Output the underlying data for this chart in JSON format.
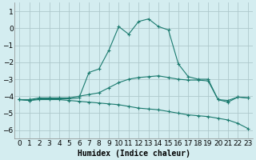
{
  "title": "",
  "xlabel": "Humidex (Indice chaleur)",
  "bg_color": "#d4edf0",
  "grid_color": "#aec8cc",
  "line_color": "#1a7a6e",
  "marker": "+",
  "series": [
    {
      "x": [
        0,
        1,
        2,
        3,
        4,
        5,
        6,
        7,
        8,
        9,
        10,
        11,
        12,
        13,
        14,
        15,
        16,
        17,
        18,
        19,
        20,
        21,
        22,
        23
      ],
      "y": [
        -4.2,
        -4.2,
        -4.1,
        -4.1,
        -4.1,
        -4.1,
        -4.0,
        -3.9,
        -3.8,
        -3.5,
        -3.2,
        -3.0,
        -2.9,
        -2.85,
        -2.8,
        -2.9,
        -3.0,
        -3.05,
        -3.05,
        -3.1,
        -4.2,
        -4.35,
        -4.05,
        -4.1
      ]
    },
    {
      "x": [
        0,
        1,
        2,
        3,
        4,
        5,
        6,
        7,
        8,
        9,
        10,
        11,
        12,
        13,
        14,
        15,
        16,
        17,
        18,
        19,
        20,
        21,
        22,
        23
      ],
      "y": [
        -4.2,
        -4.25,
        -4.2,
        -4.2,
        -4.2,
        -4.25,
        -4.3,
        -4.35,
        -4.4,
        -4.45,
        -4.5,
        -4.6,
        -4.7,
        -4.75,
        -4.8,
        -4.9,
        -5.0,
        -5.1,
        -5.15,
        -5.2,
        -5.3,
        -5.4,
        -5.6,
        -5.9
      ]
    },
    {
      "x": [
        0,
        1,
        2,
        3,
        4,
        5,
        6,
        7,
        8,
        9,
        10,
        11,
        12,
        13,
        14,
        15,
        16,
        17,
        18,
        19,
        20,
        21,
        22,
        23
      ],
      "y": [
        -4.2,
        -4.25,
        -4.15,
        -4.15,
        -4.15,
        -4.15,
        -4.1,
        -2.6,
        -2.4,
        -1.3,
        0.1,
        -0.35,
        0.4,
        0.55,
        0.1,
        -0.1,
        -2.1,
        -2.85,
        -3.0,
        -3.0,
        -4.2,
        -4.25,
        -4.05,
        -4.1
      ]
    }
  ],
  "xlim": [
    -0.5,
    23.5
  ],
  "ylim": [
    -6.5,
    1.5
  ],
  "yticks": [
    1,
    0,
    -1,
    -2,
    -3,
    -4,
    -5,
    -6
  ],
  "xticks": [
    0,
    1,
    2,
    3,
    4,
    5,
    6,
    7,
    8,
    9,
    10,
    11,
    12,
    13,
    14,
    15,
    16,
    17,
    18,
    19,
    20,
    21,
    22,
    23
  ],
  "fontsize": 6.5
}
